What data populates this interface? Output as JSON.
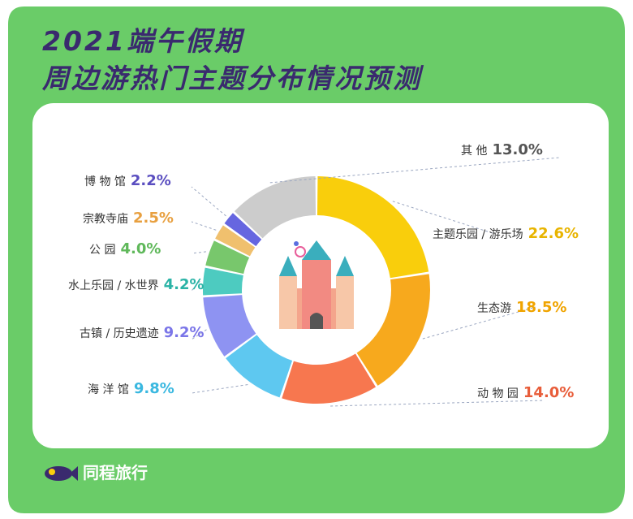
{
  "title_line1": "2021端午假期",
  "title_line2": "周边游热门主题分布情况预测",
  "brand": "同程旅行",
  "colors": {
    "frame": "#6acc68",
    "title": "#3a2a6e"
  },
  "chart_data": {
    "type": "pie",
    "title": "2021端午假期 周边游热门主题分布情况预测",
    "slices": [
      {
        "label": "主题乐园 / 游乐场",
        "value": 22.6,
        "display": "22.6%",
        "color": "#f9ce0c"
      },
      {
        "label": "生态游",
        "value": 18.5,
        "display": "18.5%",
        "color": "#f7a91d"
      },
      {
        "label": "动 物 园",
        "value": 14.0,
        "display": "14.0%",
        "color": "#f7774f"
      },
      {
        "label": "海 洋 馆",
        "value": 9.8,
        "display": "9.8%",
        "color": "#5ec8f0"
      },
      {
        "label": "古镇 / 历史遗迹",
        "value": 9.2,
        "display": "9.2%",
        "color": "#8e93f2"
      },
      {
        "label": "水上乐园 / 水世界",
        "value": 4.2,
        "display": "4.2%",
        "color": "#4dcbc0"
      },
      {
        "label": "公 园",
        "value": 4.0,
        "display": "4.0%",
        "color": "#78c76c"
      },
      {
        "label": "宗教寺庙",
        "value": 2.5,
        "display": "2.5%",
        "color": "#f0c06e"
      },
      {
        "label": "博 物 馆",
        "value": 2.2,
        "display": "2.2%",
        "color": "#6666e0"
      },
      {
        "label": "其 他",
        "value": 13.0,
        "display": "13.0%",
        "color": "#cccccc"
      }
    ],
    "pct_colors": [
      "#e8b400",
      "#f0a400",
      "#e85d3a",
      "#3ab8e0",
      "#7b76e8",
      "#2ab3a6",
      "#5fb85a",
      "#e8a040",
      "#5a4ec0",
      "#555555"
    ]
  }
}
